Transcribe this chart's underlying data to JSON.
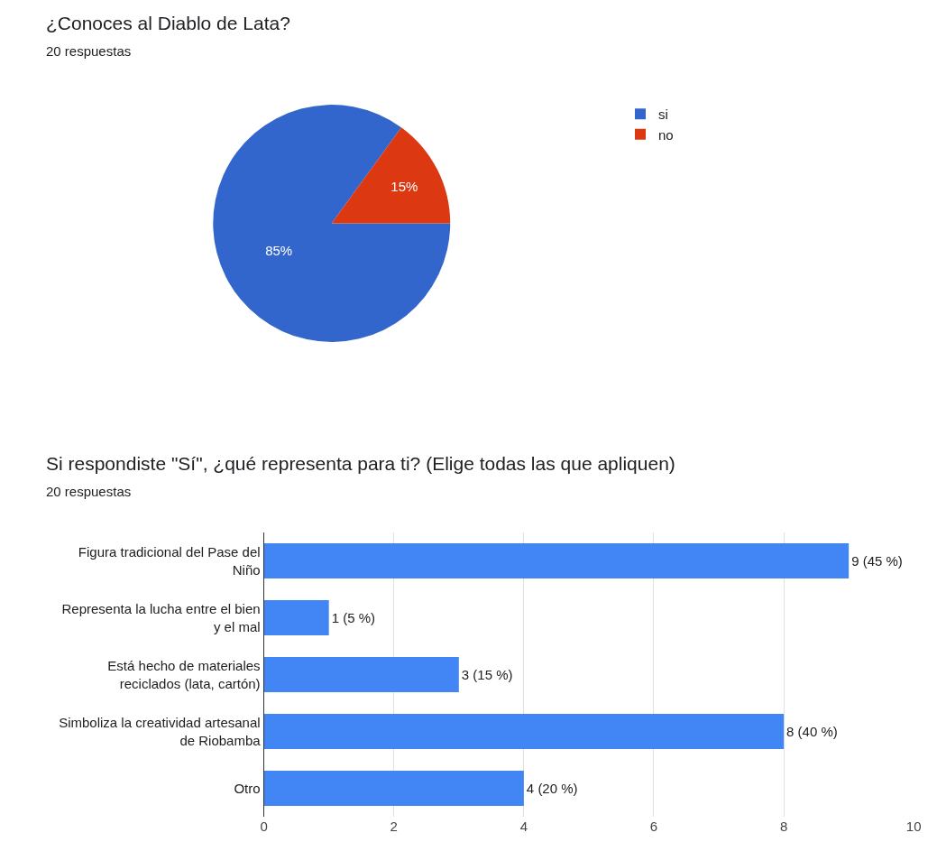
{
  "chart_data": [
    {
      "type": "pie",
      "title": "¿Conoces al Diablo de Lata?",
      "subtitle": "20 respuestas",
      "categories": [
        "si",
        "no"
      ],
      "values": [
        85,
        15
      ],
      "colors": [
        "#3366cc",
        "#dc3912"
      ],
      "value_labels": [
        "85%",
        "15%"
      ],
      "legend": "right"
    },
    {
      "type": "bar",
      "orientation": "horizontal",
      "title": "Si respondiste \"Sí\", ¿qué representa para ti? (Elige todas las que apliquen)",
      "subtitle": "20 respuestas",
      "categories": [
        "Figura tradicional del Pase del Niño",
        "Representa la lucha entre el bien y el mal",
        "Está hecho de materiales reciclados (lata, cartón)",
        "Simboliza la creatividad artesanal de Riobamba",
        "Otro"
      ],
      "values": [
        9,
        1,
        3,
        8,
        4
      ],
      "color": "#4285f4",
      "value_labels": [
        "9 (45 %)",
        "1 (5 %)",
        "3 (15 %)",
        "8 (40 %)",
        "4 (20 %)"
      ],
      "xlim": [
        0,
        10
      ],
      "xticks": [
        0,
        2,
        4,
        6,
        8,
        10
      ],
      "grid": "x"
    }
  ]
}
